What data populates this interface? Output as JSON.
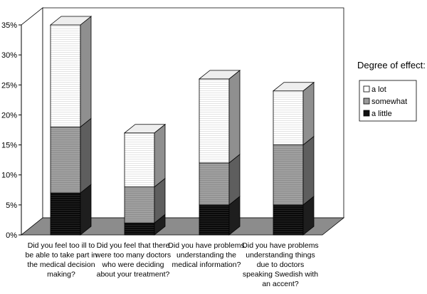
{
  "chart_data": {
    "type": "bar",
    "stacked": true,
    "three_d": true,
    "categories": [
      [
        "Did you feel too ill to",
        "be able to take part in",
        "the medical decision",
        "making?"
      ],
      [
        "Did you feel that there",
        "were too many doctors",
        "who were deciding",
        "about your treatment?"
      ],
      [
        "Did you have problems",
        "understanding the",
        "medical information?"
      ],
      [
        "Did you have problems",
        "understanding things",
        "due to doctors",
        "speaking Swedish with",
        "an accent?"
      ]
    ],
    "series": [
      {
        "name": "a little",
        "color": "#111111",
        "values": [
          7,
          2,
          5,
          5
        ]
      },
      {
        "name": "somewhat",
        "color": "#9a9a9a",
        "values": [
          11,
          6,
          7,
          10
        ]
      },
      {
        "name": "a lot",
        "color": "#ffffff",
        "values": [
          17,
          9,
          14,
          9
        ]
      }
    ],
    "ylim": [
      0,
      35
    ],
    "yticks": [
      "0%",
      "5%",
      "10%",
      "15%",
      "20%",
      "25%",
      "30%",
      "35%"
    ],
    "legend": {
      "title": "Degree of effect:",
      "position": "right"
    },
    "grid": false
  }
}
